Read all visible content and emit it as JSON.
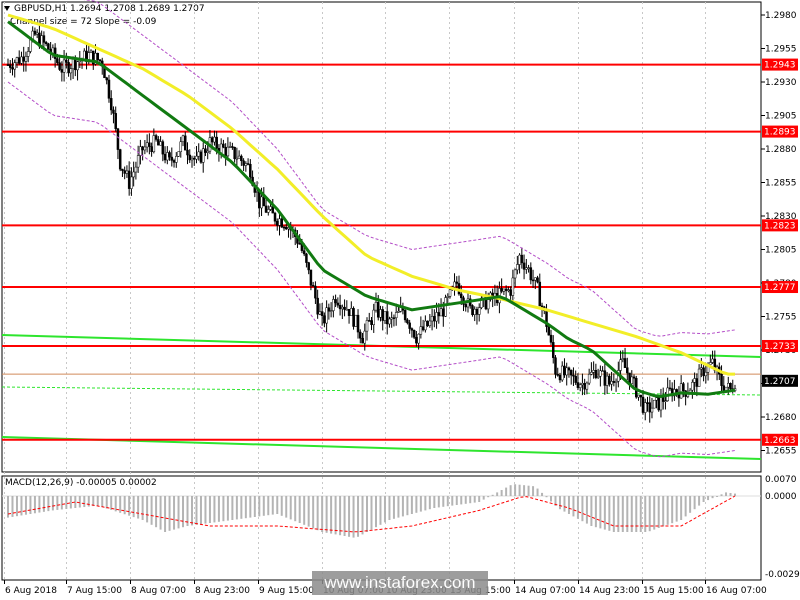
{
  "header": {
    "symbol_line": "GBPUSD,H1  1.2694 1.2708 1.2689 1.2707",
    "channel_line": "Channel size = 72 Slope = -0.09",
    "macd_line": "MACD(12,26,9) -0.00005 0.00002"
  },
  "watermark": "www.instaforex.com",
  "colors": {
    "background": "#ffffff",
    "candle": "#000000",
    "level_line": "#ff0000",
    "level_label_bg": "#ff0000",
    "current_label_bg": "#000000",
    "ma_fast": "#117a11",
    "ma_slow": "#f2ee28",
    "channel": "#2ee52e",
    "bands": "#b44ec8",
    "macd_hist": "#b4b4b4",
    "macd_signal": "#ff0000",
    "grid": "#c8c8c8"
  },
  "chart_data": [
    {
      "type": "candlestick",
      "title": "GBPUSD,H1",
      "ohlc_last": {
        "open": 1.2694,
        "high": 1.2708,
        "low": 1.2689,
        "close": 1.2707
      },
      "ylim": [
        1.2651,
        1.2993
      ],
      "y_ticks": [
        "1.2980",
        "1.2955",
        "1.2930",
        "1.2905",
        "1.2880",
        "1.2855",
        "1.2830",
        "1.2805",
        "1.2780",
        "1.2755",
        "1.2730",
        "1.2705",
        "1.2680",
        "1.2655"
      ],
      "x_ticks": [
        "6 Aug 2018",
        "7 Aug 15:00",
        "8 Aug 07:00",
        "8 Aug 23:00",
        "9 Aug 15:00",
        "10 Aug 07:00",
        "10 Aug 23:00",
        "13 Aug 15:00",
        "14 Aug 07:00",
        "14 Aug 23:00",
        "15 Aug 15:00",
        "16 Aug 07:00"
      ],
      "levels": [
        "1.2943",
        "1.2893",
        "1.2823",
        "1.2777",
        "1.2733",
        "1.2663"
      ],
      "current_price": "1.2707",
      "grid": true,
      "close_path": [
        [
          0,
          1.2943
        ],
        [
          6,
          1.2948
        ],
        [
          12,
          1.2965
        ],
        [
          18,
          1.2955
        ],
        [
          24,
          1.294
        ],
        [
          30,
          1.2945
        ],
        [
          36,
          1.295
        ],
        [
          42,
          1.2945
        ],
        [
          46,
          1.2915
        ],
        [
          50,
          1.287
        ],
        [
          54,
          1.2855
        ],
        [
          60,
          1.288
        ],
        [
          66,
          1.2885
        ],
        [
          72,
          1.287
        ],
        [
          78,
          1.2885
        ],
        [
          84,
          1.287
        ],
        [
          90,
          1.2885
        ],
        [
          96,
          1.288
        ],
        [
          102,
          1.2875
        ],
        [
          108,
          1.2865
        ],
        [
          112,
          1.284
        ],
        [
          118,
          1.283
        ],
        [
          124,
          1.2825
        ],
        [
          130,
          1.281
        ],
        [
          136,
          1.2775
        ],
        [
          140,
          1.275
        ],
        [
          146,
          1.277
        ],
        [
          152,
          1.276
        ],
        [
          158,
          1.274
        ],
        [
          164,
          1.276
        ],
        [
          170,
          1.275
        ],
        [
          176,
          1.276
        ],
        [
          182,
          1.274
        ],
        [
          188,
          1.275
        ],
        [
          194,
          1.276
        ],
        [
          200,
          1.278
        ],
        [
          206,
          1.276
        ],
        [
          212,
          1.2765
        ],
        [
          218,
          1.277
        ],
        [
          224,
          1.2775
        ],
        [
          228,
          1.28
        ],
        [
          232,
          1.279
        ],
        [
          236,
          1.2775
        ],
        [
          240,
          1.275
        ],
        [
          244,
          1.2715
        ],
        [
          250,
          1.271
        ],
        [
          256,
          1.2705
        ],
        [
          262,
          1.2715
        ],
        [
          268,
          1.2705
        ],
        [
          274,
          1.272
        ],
        [
          280,
          1.27
        ],
        [
          284,
          1.2685
        ],
        [
          290,
          1.269
        ],
        [
          296,
          1.27
        ],
        [
          302,
          1.27
        ],
        [
          306,
          1.2705
        ],
        [
          310,
          1.2715
        ],
        [
          314,
          1.272
        ],
        [
          318,
          1.2705
        ],
        [
          322,
          1.27
        ],
        [
          324,
          1.2707
        ]
      ],
      "ma_slow_path": [
        [
          0,
          1.298
        ],
        [
          20,
          1.297
        ],
        [
          40,
          1.2955
        ],
        [
          60,
          1.294
        ],
        [
          80,
          1.292
        ],
        [
          100,
          1.2895
        ],
        [
          120,
          1.2865
        ],
        [
          140,
          1.283
        ],
        [
          160,
          1.28
        ],
        [
          180,
          1.2785
        ],
        [
          200,
          1.2775
        ],
        [
          220,
          1.2768
        ],
        [
          240,
          1.276
        ],
        [
          260,
          1.275
        ],
        [
          280,
          1.274
        ],
        [
          300,
          1.2728
        ],
        [
          320,
          1.2712
        ]
      ],
      "ma_fast_path": [
        [
          0,
          1.2975
        ],
        [
          20,
          1.295
        ],
        [
          40,
          1.2945
        ],
        [
          60,
          1.292
        ],
        [
          80,
          1.2895
        ],
        [
          100,
          1.287
        ],
        [
          120,
          1.2835
        ],
        [
          140,
          1.279
        ],
        [
          160,
          1.277
        ],
        [
          180,
          1.276
        ],
        [
          200,
          1.2765
        ],
        [
          220,
          1.277
        ],
        [
          240,
          1.275
        ],
        [
          250,
          1.2738
        ],
        [
          260,
          1.273
        ],
        [
          270,
          1.2715
        ],
        [
          280,
          1.27
        ],
        [
          290,
          1.2695
        ],
        [
          300,
          1.2698
        ],
        [
          312,
          1.2697
        ],
        [
          324,
          1.27
        ]
      ]
    },
    {
      "type": "bar",
      "title": "MACD(12,26,9)",
      "values_last": {
        "macd": -5e-05,
        "signal": 2e-05
      },
      "y_ticks": [
        "0.0070",
        "0.0000",
        "-0.00299"
      ],
      "histogram_path": [
        [
          0,
          -0.0018
        ],
        [
          20,
          -0.0012
        ],
        [
          40,
          -0.0008
        ],
        [
          60,
          -0.002
        ],
        [
          70,
          -0.003
        ],
        [
          80,
          -0.0025
        ],
        [
          100,
          -0.002
        ],
        [
          120,
          -0.0015
        ],
        [
          140,
          -0.003
        ],
        [
          155,
          -0.0035
        ],
        [
          170,
          -0.002
        ],
        [
          190,
          -0.001
        ],
        [
          210,
          -0.0005
        ],
        [
          225,
          0.001
        ],
        [
          235,
          0.0008
        ],
        [
          245,
          -0.001
        ],
        [
          260,
          -0.0025
        ],
        [
          270,
          -0.003
        ],
        [
          285,
          -0.003
        ],
        [
          300,
          -0.002
        ],
        [
          310,
          -0.0005
        ],
        [
          320,
          0.0003
        ],
        [
          324,
          0.0002
        ]
      ],
      "signal_path": [
        [
          0,
          -0.0015
        ],
        [
          30,
          -0.0005
        ],
        [
          60,
          -0.0015
        ],
        [
          90,
          -0.0025
        ],
        [
          120,
          -0.0025
        ],
        [
          155,
          -0.003
        ],
        [
          180,
          -0.0025
        ],
        [
          210,
          -0.0012
        ],
        [
          230,
          0.0
        ],
        [
          250,
          -0.001
        ],
        [
          270,
          -0.0025
        ],
        [
          300,
          -0.0025
        ],
        [
          324,
          0.0
        ]
      ]
    }
  ]
}
